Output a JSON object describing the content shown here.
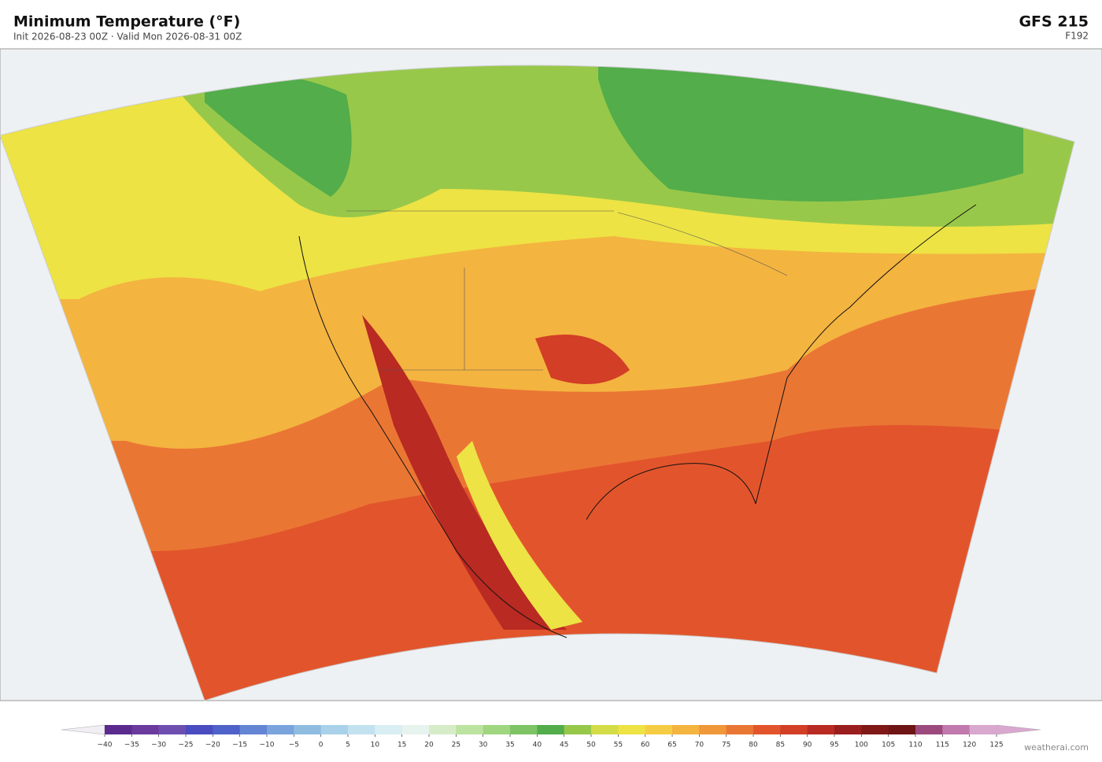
{
  "header": {
    "title": "Minimum Temperature  (°F)",
    "subtitle": "Init 2026-08-23 00Z  ·  Valid Mon 2026-08-31 00Z",
    "model": "GFS  215",
    "forecast_hour": "F192"
  },
  "colorbar": {
    "ticks": [
      {
        "value": -40,
        "label": "−40"
      },
      {
        "value": -35,
        "label": "−35"
      },
      {
        "value": -30,
        "label": "−30"
      },
      {
        "value": -25,
        "label": "−25"
      },
      {
        "value": -20,
        "label": "−20"
      },
      {
        "value": -15,
        "label": "−15"
      },
      {
        "value": -10,
        "label": "−10"
      },
      {
        "value": -5,
        "label": "−5"
      },
      0,
      5,
      10,
      15,
      20,
      25,
      30,
      35,
      40,
      45,
      50,
      55,
      60,
      65,
      70,
      75,
      80,
      85,
      90,
      95,
      100,
      105,
      110,
      115,
      120,
      125
    ],
    "colors": [
      "#5b2a8e",
      "#6a3a9e",
      "#6e4fb0",
      "#4a4cbf",
      "#4f62c9",
      "#6485d4",
      "#7ba3dc",
      "#8fbde2",
      "#a9d2ea",
      "#c2e2f0",
      "#d9eef3",
      "#e6f3ee",
      "#d6ecc9",
      "#bce3a0",
      "#9fd67f",
      "#7ec465",
      "#52ad4a",
      "#98c84a",
      "#d4dd48",
      "#ede344",
      "#f5cd45",
      "#f4b440",
      "#f0973a",
      "#ea7634",
      "#e2552c",
      "#d23e26",
      "#b82a22",
      "#9a1e1e",
      "#801818",
      "#6e1414",
      "#9c4a7e",
      "#c07aae",
      "#d9a8cf"
    ],
    "under_color": "#f1eef4",
    "over_color": "#d9a8cf"
  },
  "footer": {
    "credit": "weatherai.com"
  }
}
